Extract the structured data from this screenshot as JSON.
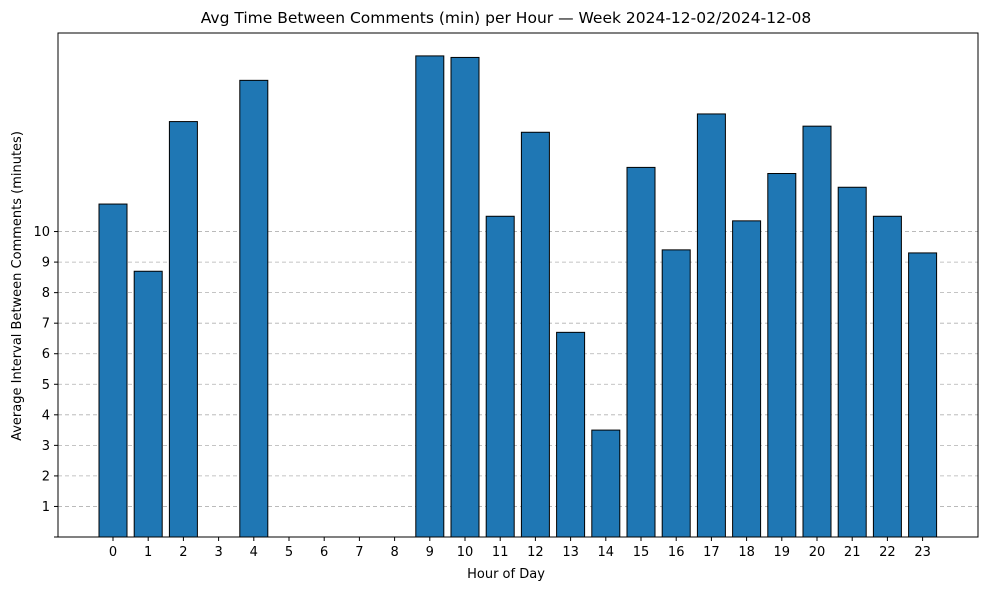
{
  "chart_data": {
    "type": "bar",
    "title": "Avg Time Between Comments (min) per Hour — Week 2024-12-02/2024-12-08",
    "xlabel": "Hour of Day",
    "ylabel": "Average Interval Between Comments (minutes)",
    "categories": [
      "0",
      "1",
      "2",
      "3",
      "4",
      "5",
      "6",
      "7",
      "8",
      "9",
      "10",
      "11",
      "12",
      "13",
      "14",
      "15",
      "16",
      "17",
      "18",
      "19",
      "20",
      "21",
      "22",
      "23"
    ],
    "values": [
      10.9,
      8.7,
      13.6,
      0,
      14.95,
      0,
      0,
      0,
      0,
      15.75,
      15.7,
      10.5,
      13.25,
      6.7,
      3.5,
      12.1,
      9.4,
      13.85,
      10.35,
      11.9,
      13.45,
      11.45,
      10.5,
      9.3
    ],
    "yticks": [
      1,
      2,
      3,
      4,
      5,
      6,
      7,
      8,
      9,
      10
    ],
    "ylim": [
      0,
      16.5
    ],
    "grid": "y-dashed",
    "bar_color": "#1f77b4",
    "edge_color": "#000000",
    "grid_color": "#b0b0b0"
  }
}
